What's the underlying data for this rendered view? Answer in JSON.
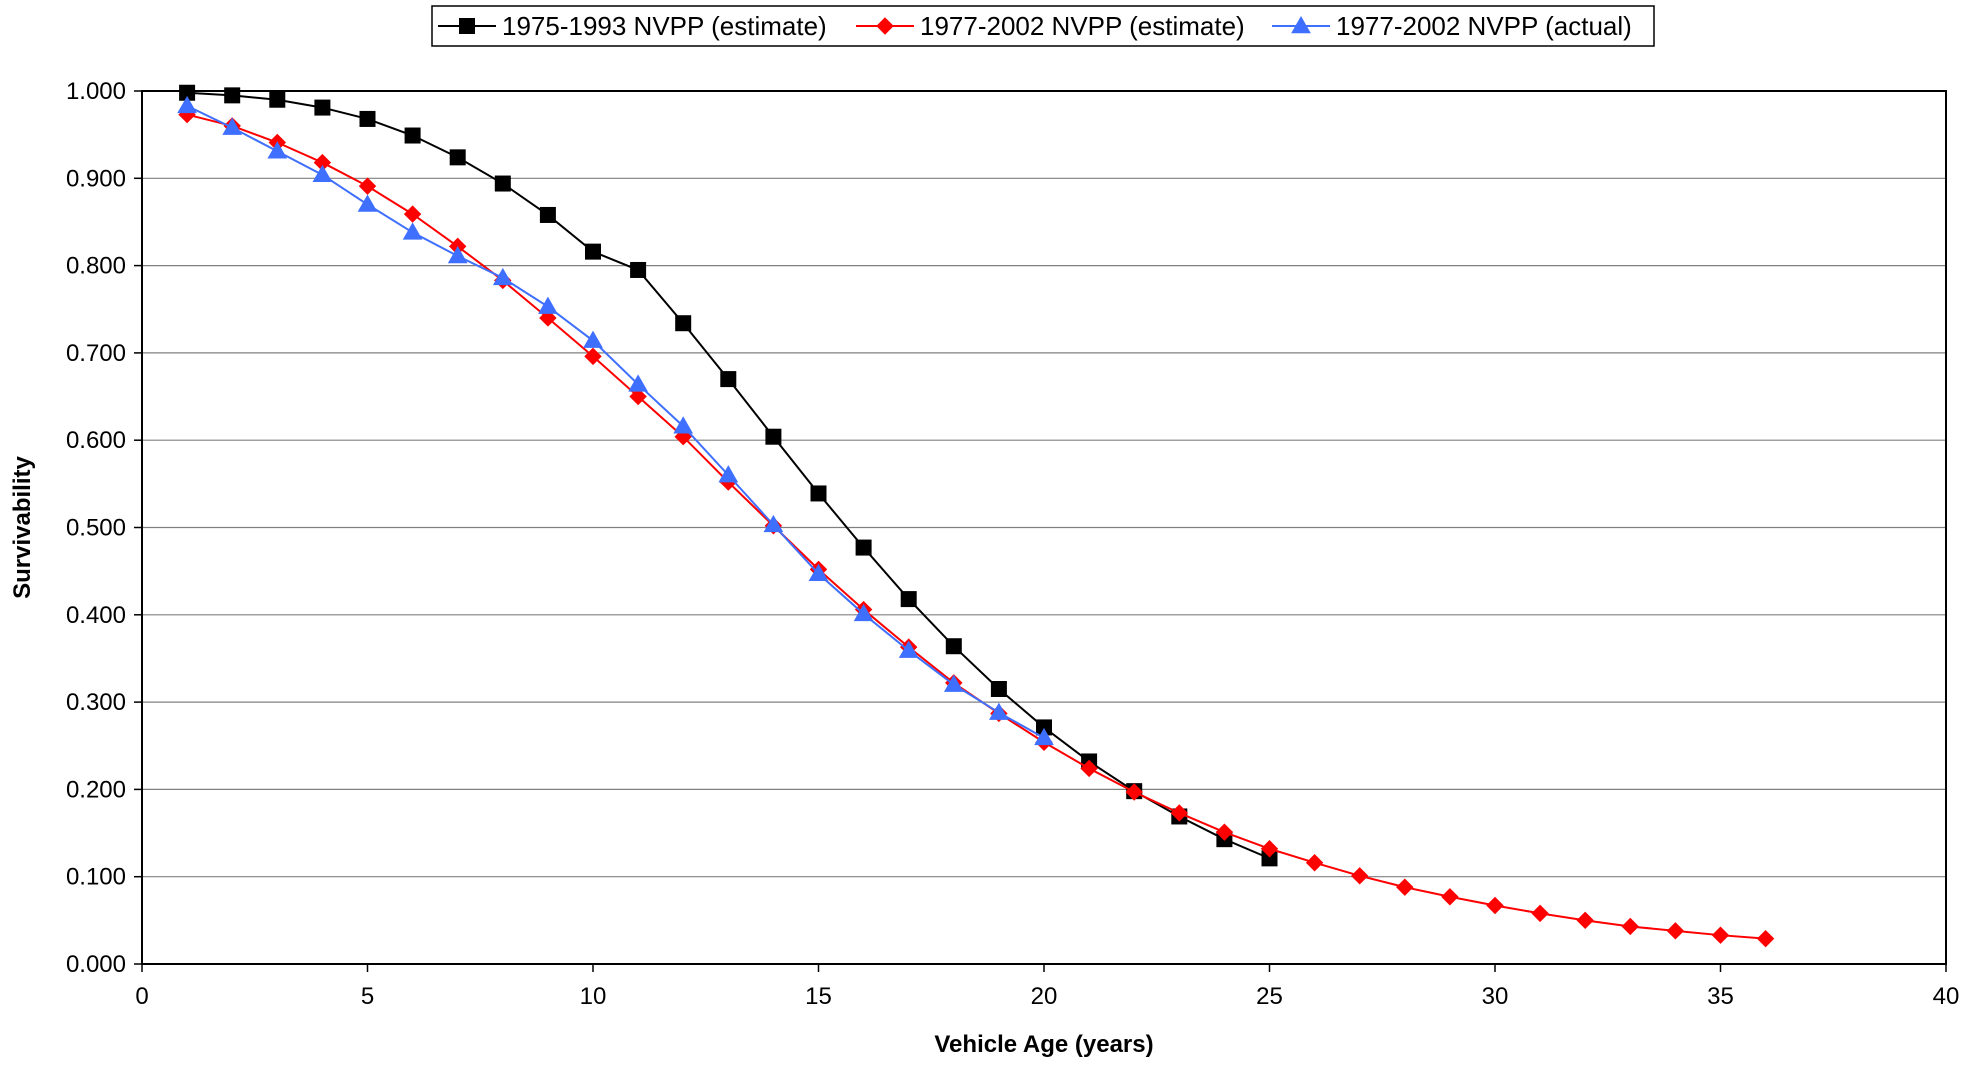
{
  "chart_data": {
    "type": "line",
    "title": "",
    "xlabel": "Vehicle Age (years)",
    "ylabel": "Survivability",
    "xlim": [
      0,
      40
    ],
    "ylim": [
      0,
      1
    ],
    "x_ticks": [
      0,
      5,
      10,
      15,
      20,
      25,
      30,
      35,
      40
    ],
    "x_tick_labels": [
      "0",
      "5",
      "10",
      "15",
      "20",
      "25",
      "30",
      "35",
      "40"
    ],
    "y_ticks": [
      0,
      0.1,
      0.2,
      0.3,
      0.4,
      0.5,
      0.6,
      0.7,
      0.8,
      0.9,
      1.0
    ],
    "y_tick_labels": [
      "0.000",
      "0.100",
      "0.200",
      "0.300",
      "0.400",
      "0.500",
      "0.600",
      "0.700",
      "0.800",
      "0.900",
      "1.000"
    ],
    "grid": "horizontal",
    "legend_position": "top",
    "series": [
      {
        "name": "1975-1993 NVPP (estimate)",
        "color": "#000000",
        "marker": "square",
        "x": [
          1,
          2,
          3,
          4,
          5,
          6,
          7,
          8,
          9,
          10,
          11,
          12,
          13,
          14,
          15,
          16,
          17,
          18,
          19,
          20,
          21,
          22,
          23,
          24,
          25
        ],
        "values": [
          0.998,
          0.995,
          0.99,
          0.981,
          0.968,
          0.949,
          0.924,
          0.894,
          0.858,
          0.816,
          0.795,
          0.734,
          0.67,
          0.604,
          0.539,
          0.477,
          0.418,
          0.364,
          0.315,
          0.271,
          0.232,
          0.198,
          0.169,
          0.143,
          0.121
        ]
      },
      {
        "name": "1977-2002 NVPP (estimate)",
        "color": "#ff0000",
        "marker": "diamond",
        "x": [
          1,
          2,
          3,
          4,
          5,
          6,
          7,
          8,
          9,
          10,
          11,
          12,
          13,
          14,
          15,
          16,
          17,
          18,
          19,
          20,
          21,
          22,
          23,
          24,
          25,
          26,
          27,
          28,
          29,
          30,
          31,
          32,
          33,
          34,
          35,
          36
        ],
        "values": [
          0.973,
          0.96,
          0.941,
          0.918,
          0.891,
          0.859,
          0.822,
          0.783,
          0.74,
          0.696,
          0.65,
          0.604,
          0.552,
          0.502,
          0.452,
          0.406,
          0.363,
          0.322,
          0.287,
          0.254,
          0.224,
          0.197,
          0.173,
          0.151,
          0.132,
          0.116,
          0.101,
          0.088,
          0.077,
          0.067,
          0.058,
          0.05,
          0.043,
          0.038,
          0.033,
          0.029
        ]
      },
      {
        "name": "1977-2002 NVPP (actual)",
        "color": "#3f6fff",
        "marker": "triangle",
        "x": [
          1,
          2,
          3,
          4,
          5,
          6,
          7,
          8,
          9,
          10,
          11,
          12,
          13,
          14,
          15,
          16,
          17,
          18,
          19,
          20
        ],
        "values": [
          0.983,
          0.958,
          0.931,
          0.904,
          0.87,
          0.838,
          0.811,
          0.786,
          0.753,
          0.714,
          0.664,
          0.616,
          0.56,
          0.503,
          0.447,
          0.401,
          0.359,
          0.32,
          0.288,
          0.259
        ]
      }
    ]
  }
}
